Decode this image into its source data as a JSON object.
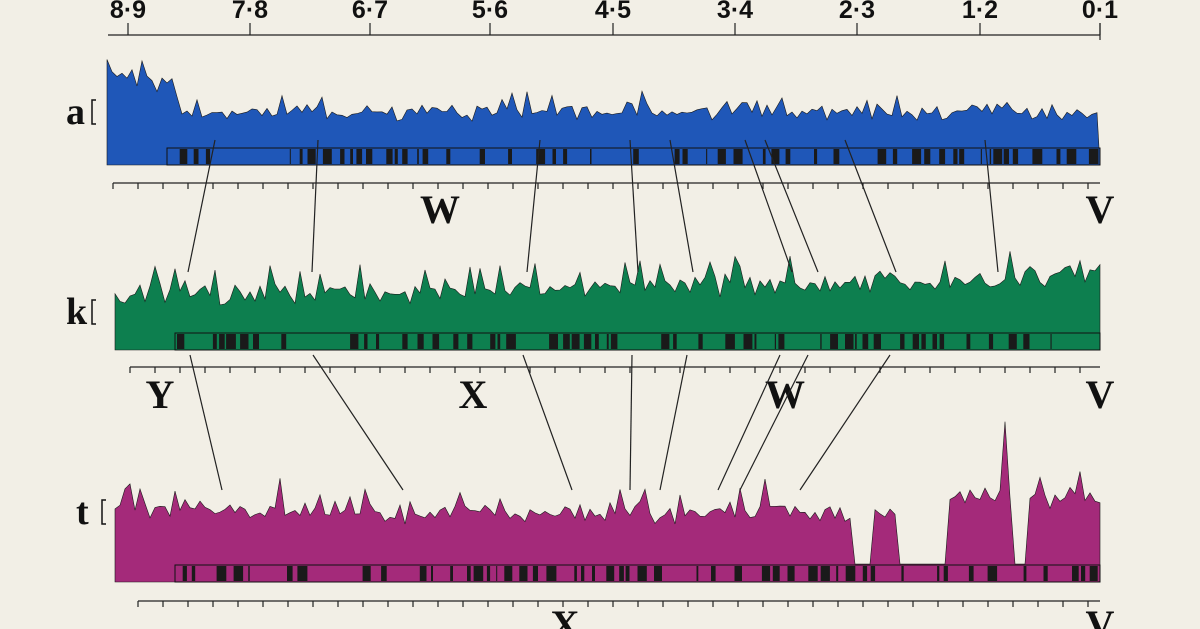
{
  "scale": {
    "ticks": [
      "8·9",
      "7·8",
      "6·7",
      "5·6",
      "4·5",
      "3·4",
      "2·3",
      "1·2",
      "0·1"
    ]
  },
  "panels": [
    {
      "label": "a",
      "markers": [
        "W",
        "V"
      ]
    },
    {
      "label": "k",
      "markers": [
        "Y",
        "X",
        "W",
        "V"
      ]
    },
    {
      "label": "t",
      "markers": [
        "X",
        "V"
      ]
    }
  ]
}
